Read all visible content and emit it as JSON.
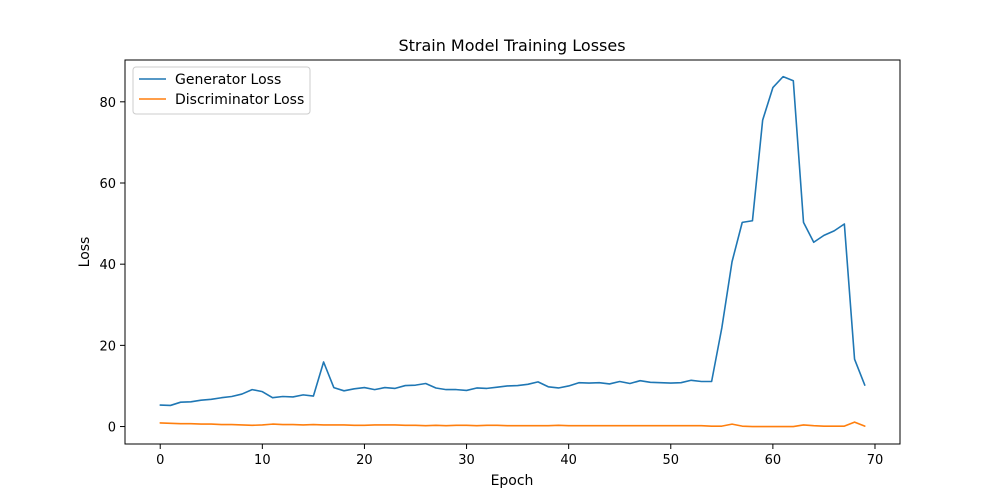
{
  "chart_data": {
    "type": "line",
    "title": "Strain Model Training Losses",
    "xlabel": "Epoch",
    "ylabel": "Loss",
    "xlim": [
      -3.45,
      72.45
    ],
    "ylim": [
      -4.3,
      90.3
    ],
    "xticks": [
      0,
      10,
      20,
      30,
      40,
      50,
      60,
      70
    ],
    "yticks": [
      0,
      20,
      40,
      60,
      80
    ],
    "grid": false,
    "legend_position": "upper-left",
    "x": [
      0,
      1,
      2,
      3,
      4,
      5,
      6,
      7,
      8,
      9,
      10,
      11,
      12,
      13,
      14,
      15,
      16,
      17,
      18,
      19,
      20,
      21,
      22,
      23,
      24,
      25,
      26,
      27,
      28,
      29,
      30,
      31,
      32,
      33,
      34,
      35,
      36,
      37,
      38,
      39,
      40,
      41,
      42,
      43,
      44,
      45,
      46,
      47,
      48,
      49,
      50,
      51,
      52,
      53,
      54,
      55,
      56,
      57,
      58,
      59,
      60,
      61,
      62,
      63,
      64,
      65,
      66,
      67,
      68,
      69
    ],
    "series": [
      {
        "name": "Generator Loss",
        "color": "#1f77b4",
        "values": [
          5.3,
          5.2,
          6.0,
          6.1,
          6.5,
          6.7,
          7.1,
          7.4,
          8.0,
          9.1,
          8.6,
          7.1,
          7.4,
          7.3,
          7.8,
          7.5,
          15.9,
          9.6,
          8.8,
          9.3,
          9.6,
          9.1,
          9.6,
          9.4,
          10.1,
          10.2,
          10.6,
          9.5,
          9.1,
          9.1,
          8.9,
          9.5,
          9.4,
          9.7,
          10.0,
          10.1,
          10.4,
          11.0,
          9.8,
          9.5,
          10.0,
          10.8,
          10.7,
          10.8,
          10.5,
          11.1,
          10.6,
          11.3,
          10.9,
          10.8,
          10.7,
          10.8,
          11.4,
          11.1,
          11.1,
          24.3,
          40.6,
          50.3,
          50.7,
          75.5,
          83.5,
          86.2,
          85.2,
          50.3,
          45.4,
          47.1,
          48.2,
          49.9,
          16.6,
          10.2
        ]
      },
      {
        "name": "Discriminator Loss",
        "color": "#ff7f0e",
        "values": [
          0.9,
          0.8,
          0.7,
          0.7,
          0.6,
          0.6,
          0.5,
          0.5,
          0.4,
          0.3,
          0.4,
          0.6,
          0.5,
          0.5,
          0.4,
          0.5,
          0.4,
          0.4,
          0.4,
          0.3,
          0.3,
          0.4,
          0.4,
          0.4,
          0.3,
          0.3,
          0.2,
          0.3,
          0.2,
          0.3,
          0.3,
          0.2,
          0.3,
          0.3,
          0.2,
          0.2,
          0.2,
          0.2,
          0.2,
          0.3,
          0.2,
          0.2,
          0.2,
          0.2,
          0.2,
          0.2,
          0.2,
          0.2,
          0.2,
          0.2,
          0.2,
          0.2,
          0.2,
          0.2,
          0.1,
          0.1,
          0.6,
          0.1,
          0.0,
          0.0,
          0.0,
          0.0,
          0.0,
          0.4,
          0.2,
          0.1,
          0.1,
          0.1,
          1.1,
          0.1
        ]
      }
    ]
  }
}
